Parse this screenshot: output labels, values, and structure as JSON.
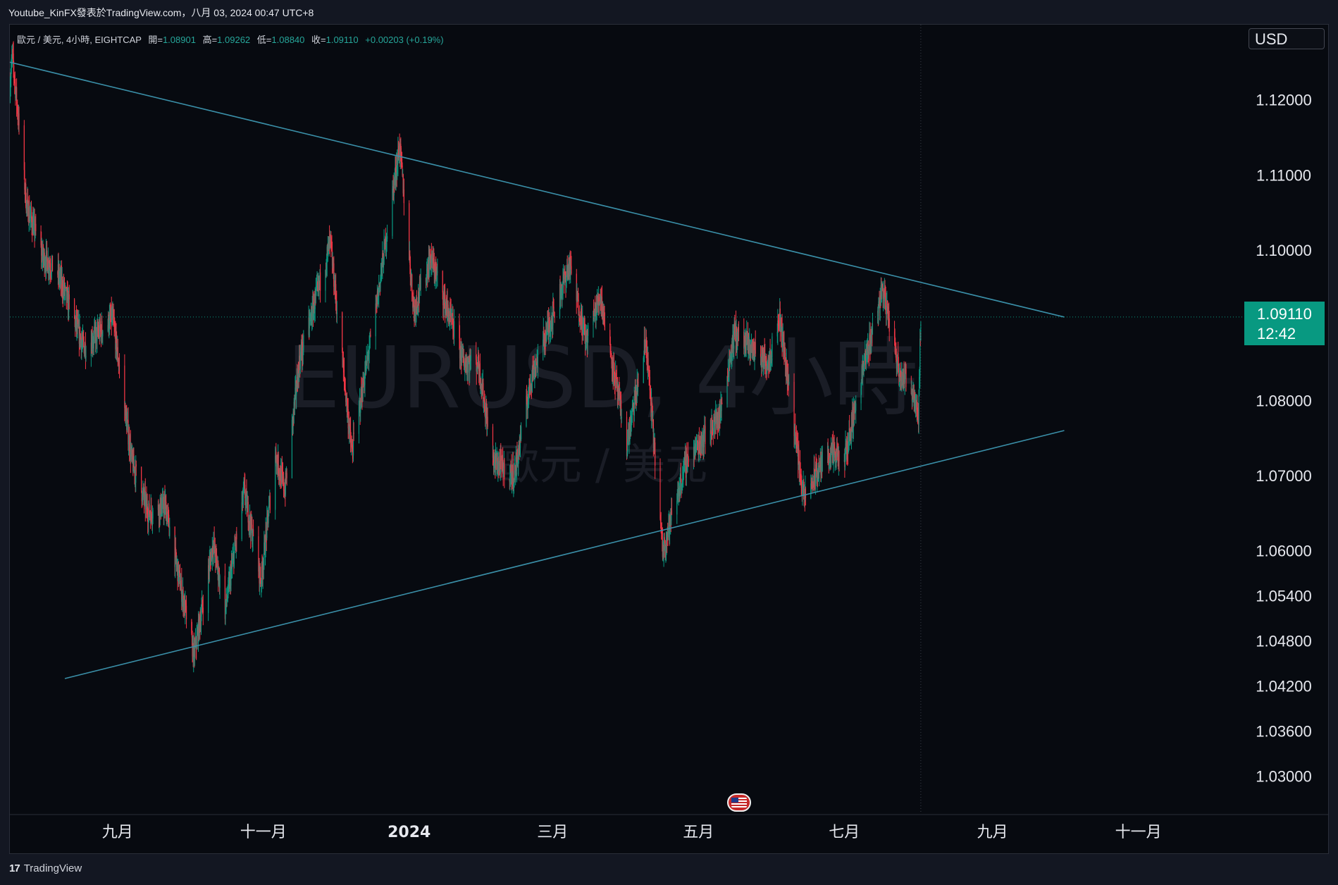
{
  "header": {
    "text": "Youtube_KinFX發表於TradingView.com，八月 03, 2024 00:47 UTC+8"
  },
  "legend": {
    "symbol": "歐元 / 美元, 4小時, EIGHTCAP",
    "open_label": "開=",
    "open": "1.08901",
    "high_label": "高=",
    "high": "1.09262",
    "low_label": "低=",
    "low": "1.08840",
    "close_label": "收=",
    "close": "1.09110",
    "change": "+0.00203 (+0.19%)"
  },
  "currency": "USD",
  "last_price": {
    "price": "1.09110",
    "countdown": "12:42"
  },
  "watermark": {
    "ticker": "EURUSD, 4小時",
    "name": "歐元 / 美元"
  },
  "footer": {
    "logo": "17",
    "brand": "TradingView"
  },
  "colors": {
    "background": "#070a10",
    "up": "#089981",
    "down": "#f23645",
    "trendline": "#3a8fa8",
    "badge": "#089981"
  },
  "icons": {
    "event_flag": "us-flag-icon",
    "logo": "tradingview-logo-icon"
  },
  "chart_data": {
    "type": "candlestick",
    "symbol": "EURUSD",
    "timeframe": "4小時",
    "x_range": [
      "2023-07-18",
      "2024-12-15"
    ],
    "y_range": [
      1.025,
      1.13
    ],
    "y_ticks": [
      "1.12000",
      "1.11000",
      "1.10000",
      "1.08000",
      "1.07000",
      "1.06000",
      "1.05400",
      "1.04800",
      "1.04200",
      "1.03600",
      "1.03000"
    ],
    "x_ticks": [
      {
        "label": "九月",
        "date": "2023-09-01",
        "bold": false
      },
      {
        "label": "十一月",
        "date": "2023-11-01",
        "bold": false
      },
      {
        "label": "2024",
        "date": "2024-01-01",
        "bold": true
      },
      {
        "label": "三月",
        "date": "2024-03-01",
        "bold": false
      },
      {
        "label": "五月",
        "date": "2024-05-01",
        "bold": false
      },
      {
        "label": "七月",
        "date": "2024-07-01",
        "bold": false
      },
      {
        "label": "九月",
        "date": "2024-09-01",
        "bold": false
      },
      {
        "label": "十一月",
        "date": "2024-11-01",
        "bold": false
      }
    ],
    "price_path": [
      {
        "date": "2023-07-18",
        "price": 1.122
      },
      {
        "date": "2023-07-19",
        "price": 1.126
      },
      {
        "date": "2023-07-25",
        "price": 1.106
      },
      {
        "date": "2023-08-01",
        "price": 1.099
      },
      {
        "date": "2023-08-07",
        "price": 1.097
      },
      {
        "date": "2023-08-18",
        "price": 1.087
      },
      {
        "date": "2023-08-30",
        "price": 1.091
      },
      {
        "date": "2023-09-07",
        "price": 1.072
      },
      {
        "date": "2023-09-14",
        "price": 1.065
      },
      {
        "date": "2023-09-21",
        "price": 1.066
      },
      {
        "date": "2023-10-03",
        "price": 1.046
      },
      {
        "date": "2023-10-11",
        "price": 1.061
      },
      {
        "date": "2023-10-16",
        "price": 1.052
      },
      {
        "date": "2023-10-24",
        "price": 1.068
      },
      {
        "date": "2023-10-31",
        "price": 1.056
      },
      {
        "date": "2023-11-06",
        "price": 1.073
      },
      {
        "date": "2023-11-10",
        "price": 1.068
      },
      {
        "date": "2023-11-16",
        "price": 1.085
      },
      {
        "date": "2023-11-29",
        "price": 1.101
      },
      {
        "date": "2023-12-08",
        "price": 1.073
      },
      {
        "date": "2023-12-18",
        "price": 1.092
      },
      {
        "date": "2023-12-28",
        "price": 1.114
      },
      {
        "date": "2024-01-03",
        "price": 1.092
      },
      {
        "date": "2024-01-10",
        "price": 1.099
      },
      {
        "date": "2024-01-24",
        "price": 1.085
      },
      {
        "date": "2024-01-30",
        "price": 1.085
      },
      {
        "date": "2024-02-05",
        "price": 1.072
      },
      {
        "date": "2024-02-14",
        "price": 1.07
      },
      {
        "date": "2024-02-21",
        "price": 1.083
      },
      {
        "date": "2024-03-08",
        "price": 1.098
      },
      {
        "date": "2024-03-15",
        "price": 1.088
      },
      {
        "date": "2024-03-21",
        "price": 1.094
      },
      {
        "date": "2024-04-01",
        "price": 1.074
      },
      {
        "date": "2024-04-09",
        "price": 1.088
      },
      {
        "date": "2024-04-16",
        "price": 1.06
      },
      {
        "date": "2024-04-26",
        "price": 1.072
      },
      {
        "date": "2024-05-10",
        "price": 1.078
      },
      {
        "date": "2024-05-16",
        "price": 1.089
      },
      {
        "date": "2024-05-30",
        "price": 1.085
      },
      {
        "date": "2024-06-04",
        "price": 1.091
      },
      {
        "date": "2024-06-14",
        "price": 1.067
      },
      {
        "date": "2024-06-24",
        "price": 1.073
      },
      {
        "date": "2024-07-01",
        "price": 1.072
      },
      {
        "date": "2024-07-08",
        "price": 1.083
      },
      {
        "date": "2024-07-17",
        "price": 1.095
      },
      {
        "date": "2024-07-24",
        "price": 1.084
      },
      {
        "date": "2024-07-30",
        "price": 1.081
      },
      {
        "date": "2024-08-01",
        "price": 1.078
      },
      {
        "date": "2024-08-02",
        "price": 1.0911
      }
    ],
    "trendlines": [
      {
        "name": "resistance",
        "start": {
          "date": "2023-07-18",
          "price": 1.125
        },
        "end": {
          "date": "2024-10-01",
          "price": 1.0911
        }
      },
      {
        "name": "support",
        "start": {
          "date": "2023-08-10",
          "price": 1.043
        },
        "end": {
          "date": "2024-10-01",
          "price": 1.076
        }
      }
    ],
    "last_price": 1.0911,
    "grid": false,
    "legend_position": "top-left"
  }
}
